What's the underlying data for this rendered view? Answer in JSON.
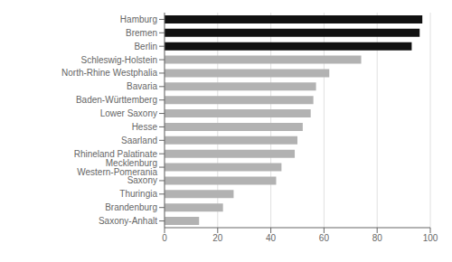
{
  "chart_data": {
    "type": "bar",
    "orientation": "horizontal",
    "categories": [
      "Saxony-Anhalt",
      "Brandenburg",
      "Thuringia",
      "Saxony",
      "Mecklenburg Western-Pomerania",
      "Rhineland Palatinate",
      "Saarland",
      "Hesse",
      "Lower Saxony",
      "Baden-Württemberg",
      "Bavaria",
      "North-Rhine Westphalia",
      "Schleswig-Holstein",
      "Berlin",
      "Bremen",
      "Hamburg"
    ],
    "values": [
      13,
      22,
      26,
      42,
      44,
      49,
      50,
      52,
      55,
      56,
      57,
      62,
      74,
      93,
      96,
      97
    ],
    "colors": [
      "#b2b2b2",
      "#b2b2b2",
      "#b2b2b2",
      "#b2b2b2",
      "#b2b2b2",
      "#b2b2b2",
      "#b2b2b2",
      "#b2b2b2",
      "#b2b2b2",
      "#b2b2b2",
      "#b2b2b2",
      "#b2b2b2",
      "#b2b2b2",
      "#111111",
      "#111111",
      "#111111"
    ],
    "xlim": [
      0,
      100
    ],
    "xticks": [
      0,
      20,
      40,
      60,
      80,
      100
    ],
    "grid": true
  }
}
